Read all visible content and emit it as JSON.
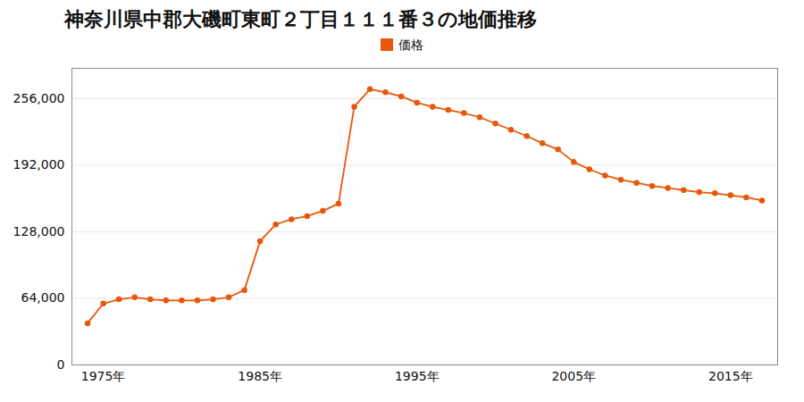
{
  "chart_data": {
    "type": "line",
    "title": "神奈川県中郡大磯町東町２丁目１１１番３の地価推移",
    "x": [
      1974,
      1975,
      1976,
      1977,
      1978,
      1979,
      1980,
      1981,
      1982,
      1983,
      1984,
      1985,
      1986,
      1987,
      1988,
      1989,
      1990,
      1991,
      1992,
      1993,
      1994,
      1995,
      1996,
      1997,
      1998,
      1999,
      2000,
      2001,
      2002,
      2003,
      2004,
      2005,
      2006,
      2007,
      2008,
      2009,
      2010,
      2011,
      2012,
      2013,
      2014,
      2015,
      2016,
      2017
    ],
    "series": [
      {
        "name": "価格",
        "color": "#E8570A",
        "marker": "circle",
        "values": [
          40000,
          59000,
          63000,
          65000,
          63000,
          62000,
          62000,
          62000,
          63000,
          65000,
          72000,
          119000,
          135000,
          140000,
          143000,
          148000,
          155000,
          248000,
          265000,
          262000,
          258000,
          252000,
          248000,
          245000,
          242000,
          238000,
          232000,
          226000,
          220000,
          213000,
          207000,
          195000,
          188000,
          182000,
          178000,
          175000,
          172000,
          170000,
          168000,
          166000,
          165000,
          163000,
          161000,
          158000
        ]
      }
    ],
    "xlim": [
      1973,
      2018
    ],
    "xticks": [
      {
        "value": 1975,
        "label": "1975年"
      },
      {
        "value": 1985,
        "label": "1985年"
      },
      {
        "value": 1995,
        "label": "1995年"
      },
      {
        "value": 2005,
        "label": "2005年"
      },
      {
        "value": 2015,
        "label": "2015年"
      }
    ],
    "ylim": [
      0,
      285000
    ],
    "yticks": [
      0,
      {
        "value": 64000,
        "label": "64,000"
      },
      {
        "value": 128000,
        "label": "128,000"
      },
      {
        "value": 192000,
        "label": "192,000"
      },
      {
        "value": 256000,
        "label": "256,000"
      }
    ],
    "grid": "y",
    "legend": "top"
  }
}
